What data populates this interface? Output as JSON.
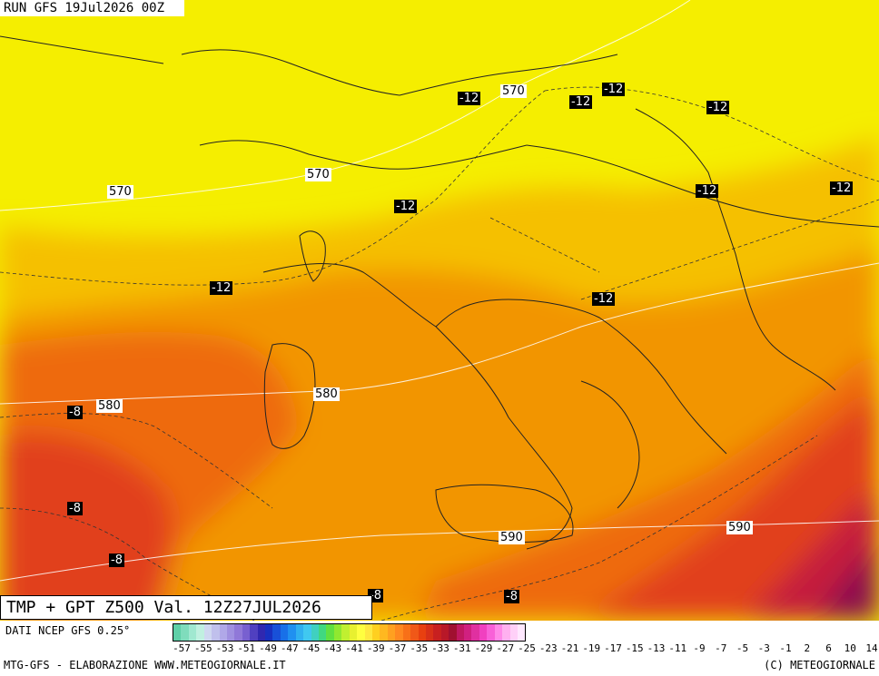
{
  "map": {
    "run_label": "RUN GFS 19Jul2026 00Z",
    "title": "TMP + GPT Z500 Val. 12Z27JUL2026",
    "source": "DATI NCEP GFS 0.25°",
    "footer_left": "MTG-GFS - ELABORAZIONE WWW.METEOGIORNALE.IT",
    "footer_right": "(C) METEOGIORNALE",
    "variable": "Temperature 500 hPa + geopotential height Z500",
    "contour_labels": [
      {
        "text": "570",
        "kind": "geopotential"
      },
      {
        "text": "570",
        "kind": "geopotential"
      },
      {
        "text": "570",
        "kind": "geopotential"
      },
      {
        "text": "580",
        "kind": "geopotential"
      },
      {
        "text": "580",
        "kind": "geopotential"
      },
      {
        "text": "590",
        "kind": "geopotential"
      },
      {
        "text": "590",
        "kind": "geopotential"
      },
      {
        "text": "-12",
        "kind": "temperature"
      },
      {
        "text": "-12",
        "kind": "temperature"
      },
      {
        "text": "-12",
        "kind": "temperature"
      },
      {
        "text": "-12",
        "kind": "temperature"
      },
      {
        "text": "-12",
        "kind": "temperature"
      },
      {
        "text": "-12",
        "kind": "temperature"
      },
      {
        "text": "-12",
        "kind": "temperature"
      },
      {
        "text": "-12",
        "kind": "temperature"
      },
      {
        "text": "-12",
        "kind": "temperature"
      },
      {
        "text": "-8",
        "kind": "temperature"
      },
      {
        "text": "-8",
        "kind": "temperature"
      },
      {
        "text": "-8",
        "kind": "temperature"
      },
      {
        "text": "-8",
        "kind": "temperature"
      },
      {
        "text": "-8",
        "kind": "temperature"
      }
    ]
  },
  "scale": {
    "tick_labels": [
      "-57",
      "-55",
      "-53",
      "-51",
      "-49",
      "-47",
      "-45",
      "-43",
      "-41",
      "-39",
      "-37",
      "-35",
      "-33",
      "-31",
      "-29",
      "-27",
      "-25",
      "-23",
      "-21",
      "-19",
      "-17",
      "-15",
      "-13",
      "-11",
      "-9",
      "-7",
      "-5",
      "-3",
      "-1",
      "2",
      "6",
      "10",
      "14"
    ],
    "colors": [
      "#5fd0a8",
      "#7fdcbc",
      "#a0e8d0",
      "#c0f0e0",
      "#cfd8f0",
      "#c0c0ec",
      "#b0a8e8",
      "#a090e0",
      "#9078d8",
      "#7860d0",
      "#5040c0",
      "#3028b0",
      "#1830c0",
      "#1850d8",
      "#1870e8",
      "#2090f0",
      "#30b0f0",
      "#40c8f0",
      "#40d0c0",
      "#40d880",
      "#60e040",
      "#90e830",
      "#c0f030",
      "#e8f030",
      "#ffff40",
      "#ffe840",
      "#ffd020",
      "#ffb820",
      "#ffa020",
      "#ff8820",
      "#f87018",
      "#f05818",
      "#e84010",
      "#d83018",
      "#c82020",
      "#b81828",
      "#a01030",
      "#c01860",
      "#d02080",
      "#e030a0",
      "#f040c0",
      "#f860d8",
      "#ff88e8",
      "#ffb0f0",
      "#ffd0f8",
      "#ffe8ff"
    ]
  },
  "colors": {
    "yellow": "#f5ee00",
    "light_orange": "#f5c000",
    "orange": "#f29500",
    "dark_orange": "#ee6a0a",
    "red": "#e1401e",
    "crimson": "#c41e3c",
    "magenta": "#8a1050"
  }
}
